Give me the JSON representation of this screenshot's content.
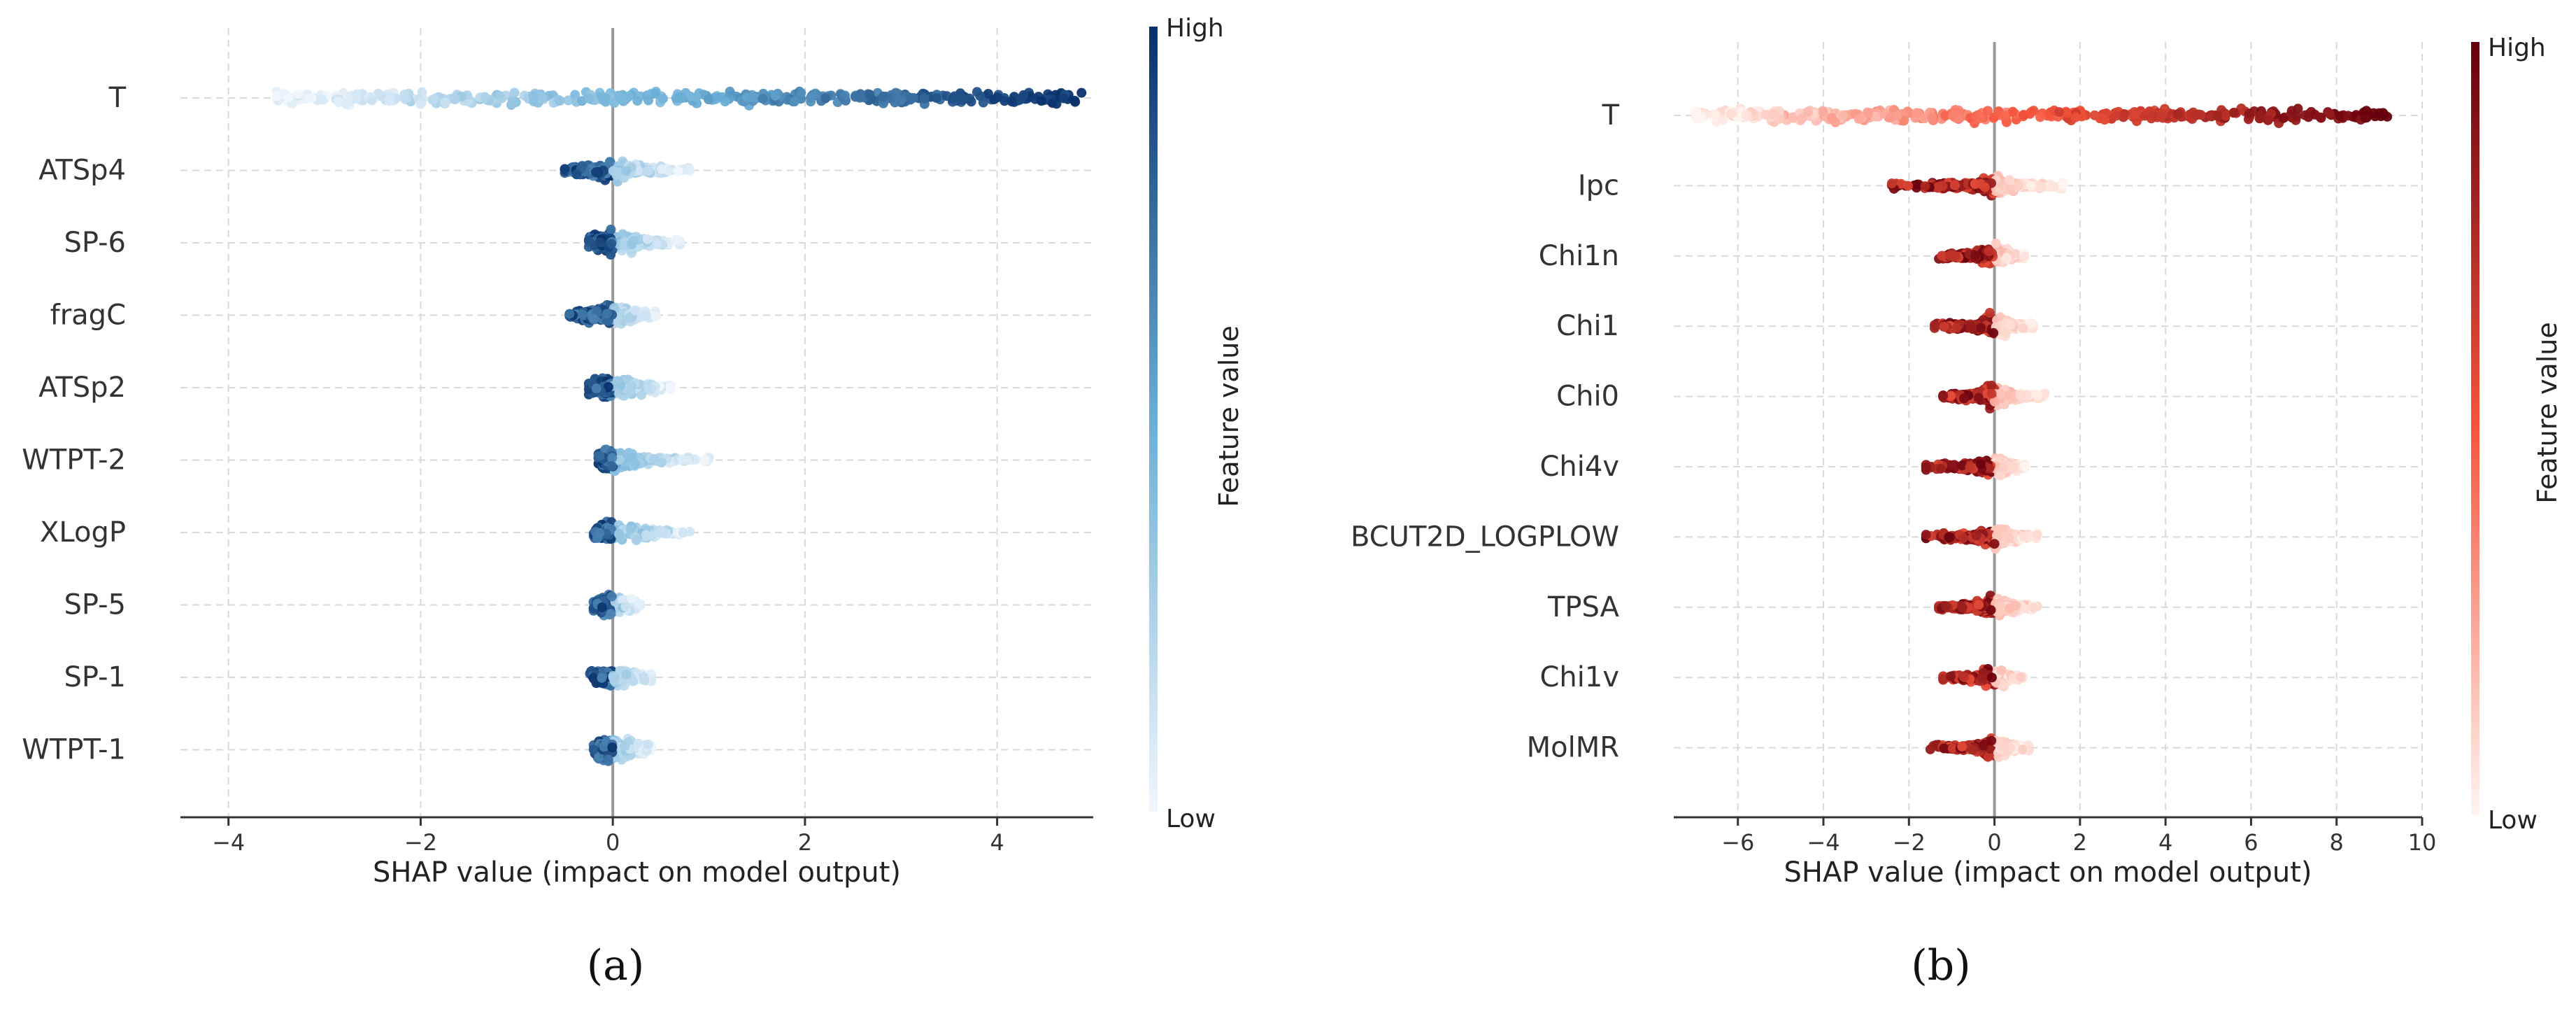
{
  "chart_data": [
    {
      "type": "scatter",
      "subtype": "shap-beeswarm",
      "caption": "(a)",
      "xlabel": "SHAP value (impact on model output)",
      "xlim": [
        -4.5,
        5.0
      ],
      "xticks": [
        -4,
        -2,
        0,
        2,
        4
      ],
      "xtick_labels": [
        "−4",
        "−2",
        "0",
        "2",
        "4"
      ],
      "grid": true,
      "colormap": "Blues",
      "colors": {
        "low": "#f1f6fc",
        "mid": "#6aaed6",
        "high": "#08306b"
      },
      "colorbar": {
        "label": "Feature value",
        "high_label": "High",
        "low_label": "Low",
        "placement": "right"
      },
      "features": [
        {
          "name": "T",
          "min": -3.5,
          "max": 4.9,
          "spread": 1.0
        },
        {
          "name": "ATSp4",
          "min": -0.5,
          "max": 0.8,
          "spread": 0.6
        },
        {
          "name": "SP-6",
          "min": -0.25,
          "max": 0.7,
          "spread": 0.65
        },
        {
          "name": "fragC",
          "min": -0.45,
          "max": 0.45,
          "spread": 0.6
        },
        {
          "name": "ATSp2",
          "min": -0.25,
          "max": 0.6,
          "spread": 0.65
        },
        {
          "name": "WTPT-2",
          "min": -0.15,
          "max": 1.0,
          "spread": 0.7
        },
        {
          "name": "XLogP",
          "min": -0.2,
          "max": 0.8,
          "spread": 0.6
        },
        {
          "name": "SP-5",
          "min": -0.2,
          "max": 0.3,
          "spread": 0.6
        },
        {
          "name": "SP-1",
          "min": -0.25,
          "max": 0.4,
          "spread": 0.6
        },
        {
          "name": "WTPT-1",
          "min": -0.2,
          "max": 0.4,
          "spread": 0.7
        }
      ]
    },
    {
      "type": "scatter",
      "subtype": "shap-beeswarm",
      "caption": "(b)",
      "xlabel": "SHAP value (impact on model output)",
      "xlim": [
        -7.5,
        10.0
      ],
      "xticks": [
        -6,
        -4,
        -2,
        0,
        2,
        4,
        6,
        8,
        10
      ],
      "xtick_labels": [
        "−6",
        "−4",
        "−2",
        "0",
        "2",
        "4",
        "6",
        "8",
        "10"
      ],
      "grid": true,
      "colormap": "Reds",
      "colors": {
        "low": "#fff5f0",
        "mid": "#f6553c",
        "high": "#67000d"
      },
      "colorbar": {
        "label": "Feature value",
        "high_label": "High",
        "low_label": "Low",
        "placement": "right"
      },
      "features": [
        {
          "name": "T",
          "min": -7.0,
          "max": 9.2,
          "spread": 1.0
        },
        {
          "name": "Ipc",
          "min": -2.4,
          "max": 1.6,
          "spread": 0.7
        },
        {
          "name": "Chi1n",
          "min": -1.3,
          "max": 0.7,
          "spread": 0.7
        },
        {
          "name": "Chi1",
          "min": -1.4,
          "max": 0.9,
          "spread": 0.7
        },
        {
          "name": "Chi0",
          "min": -1.2,
          "max": 1.2,
          "spread": 0.7
        },
        {
          "name": "Chi4v",
          "min": -1.6,
          "max": 0.7,
          "spread": 0.7
        },
        {
          "name": "BCUT2D_LOGPLOW",
          "min": -1.6,
          "max": 1.0,
          "spread": 0.75
        },
        {
          "name": "TPSA",
          "min": -1.3,
          "max": 1.0,
          "spread": 0.7
        },
        {
          "name": "Chi1v",
          "min": -1.2,
          "max": 0.7,
          "spread": 0.65
        },
        {
          "name": "MolMR",
          "min": -1.5,
          "max": 0.8,
          "spread": 0.7
        }
      ]
    }
  ]
}
